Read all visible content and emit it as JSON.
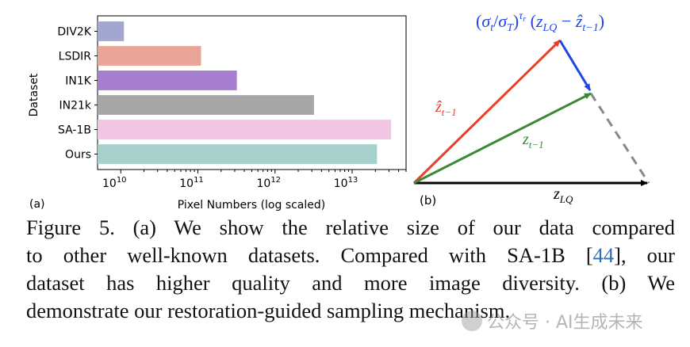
{
  "panel_a": {
    "label": "(a)",
    "chart_data": {
      "type": "bar",
      "orientation": "horizontal",
      "scale": "log",
      "categories": [
        "DIV2K",
        "LSDIR",
        "IN1K",
        "IN21k",
        "SA-1B",
        "Ours"
      ],
      "values": [
        11000000000.0,
        110000000000.0,
        320000000000.0,
        3200000000000.0,
        32000000000000.0,
        21000000000000.0
      ],
      "colors": [
        "#a3a6d1",
        "#e9a597",
        "#a57ecf",
        "#a6a6a6",
        "#f1c6e2",
        "#a5d0cb"
      ],
      "xlabel": "Pixel Numbers (log scaled)",
      "ylabel": "Dataset",
      "xlim": [
        5000000000.0,
        50000000000000.0
      ],
      "xticks": [
        {
          "value": 10000000000.0,
          "base": "10",
          "exp": "10"
        },
        {
          "value": 100000000000.0,
          "base": "10",
          "exp": "11"
        },
        {
          "value": 1000000000000.0,
          "base": "10",
          "exp": "12"
        },
        {
          "value": 10000000000000.0,
          "base": "10",
          "exp": "13"
        }
      ]
    }
  },
  "panel_b": {
    "label": "(b)",
    "vector_labels": {
      "top": "(σt/σT)τr(zLQ − ẑt−1)",
      "red": "ẑt−1",
      "green": "zt−1",
      "black": "zLQ"
    },
    "colors": {
      "red": "#e8402a",
      "green": "#3a8a35",
      "blue": "#1f45e8",
      "black": "#000000",
      "dashed": "#888888"
    }
  },
  "caption": {
    "lines": [
      "Figure 5.  (a) We show the relative size of our data compared",
      "to other well-known datasets.  Compared with SA-1B [",
      "dataset has higher quality and more image diversity.  (b) We",
      "demonstrate our restoration-guided sampling mechanism."
    ],
    "citation": "44",
    "after_citation": "], our"
  },
  "watermark": "公众号 · AI生成未来"
}
